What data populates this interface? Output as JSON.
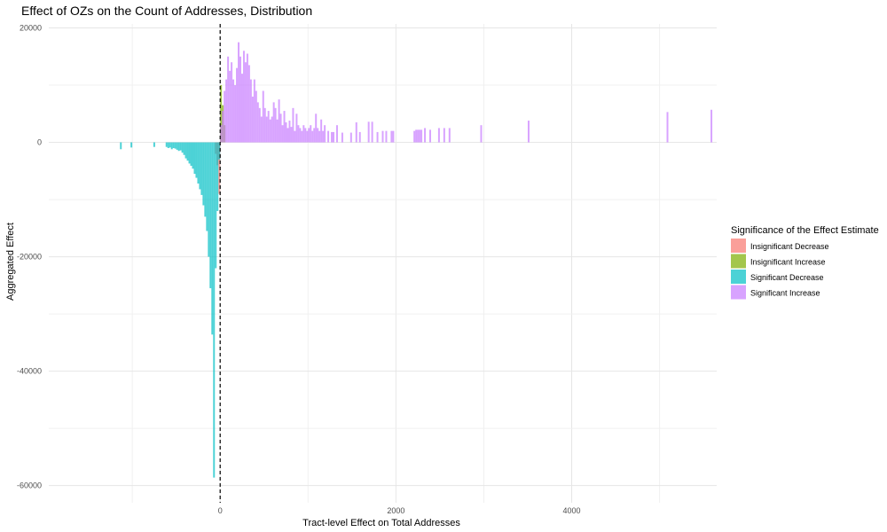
{
  "chart_data": {
    "type": "bar",
    "title": "Effect of OZs on the Count of Addresses, Distribution",
    "xlabel": "Tract-level Effect on Total Addresses",
    "ylabel": "Aggregated Effect",
    "xlim": [
      -1950,
      5650
    ],
    "ylim": [
      -63000,
      20700
    ],
    "xticks": [
      {
        "value": 0,
        "label": "0"
      },
      {
        "value": 2000,
        "label": "2000"
      },
      {
        "value": 4000,
        "label": "4000"
      }
    ],
    "yticks": [
      {
        "value": 20000,
        "label": "20000"
      },
      {
        "value": 0,
        "label": "0"
      },
      {
        "value": -20000,
        "label": "-20000"
      },
      {
        "value": -40000,
        "label": "-40000"
      },
      {
        "value": -60000,
        "label": "-60000"
      }
    ],
    "bin_width": 20,
    "reference_line": {
      "x": 0,
      "style": "dashed"
    },
    "grid": true,
    "legend": {
      "title": "Significance of the Effect Estimate",
      "placement": "right"
    },
    "series": [
      {
        "name": "Insignificant Decrease",
        "color": "#F8766D",
        "bars": [
          {
            "x": -50,
            "y": -2000
          },
          {
            "x": -30,
            "y": -4000
          },
          {
            "x": -10,
            "y": -9000
          }
        ]
      },
      {
        "name": "Insignificant Increase",
        "color": "#7CAE00",
        "bars": [
          {
            "x": 10,
            "y": 10000
          },
          {
            "x": 30,
            "y": 6500
          },
          {
            "x": 50,
            "y": 3000
          }
        ]
      },
      {
        "name": "Significant Decrease",
        "color": "#00BFC4",
        "bars": [
          {
            "x": -1130,
            "y": -1200
          },
          {
            "x": -1010,
            "y": -900
          },
          {
            "x": -750,
            "y": -800
          },
          {
            "x": -610,
            "y": -800
          },
          {
            "x": -590,
            "y": -1000
          },
          {
            "x": -570,
            "y": -900
          },
          {
            "x": -550,
            "y": -1200
          },
          {
            "x": -530,
            "y": -1000
          },
          {
            "x": -510,
            "y": -1100
          },
          {
            "x": -490,
            "y": -1300
          },
          {
            "x": -470,
            "y": -1500
          },
          {
            "x": -450,
            "y": -1400
          },
          {
            "x": -430,
            "y": -1800
          },
          {
            "x": -410,
            "y": -2200
          },
          {
            "x": -390,
            "y": -2800
          },
          {
            "x": -370,
            "y": -3200
          },
          {
            "x": -350,
            "y": -3700
          },
          {
            "x": -330,
            "y": -4100
          },
          {
            "x": -310,
            "y": -4600
          },
          {
            "x": -290,
            "y": -5500
          },
          {
            "x": -270,
            "y": -6200
          },
          {
            "x": -250,
            "y": -7200
          },
          {
            "x": -230,
            "y": -8200
          },
          {
            "x": -210,
            "y": -9200
          },
          {
            "x": -190,
            "y": -11000
          },
          {
            "x": -170,
            "y": -13000
          },
          {
            "x": -150,
            "y": -15500
          },
          {
            "x": -130,
            "y": -20000
          },
          {
            "x": -110,
            "y": -25500
          },
          {
            "x": -90,
            "y": -33600
          },
          {
            "x": -70,
            "y": -58600
          },
          {
            "x": -50,
            "y": -22000
          },
          {
            "x": -30,
            "y": -12000
          },
          {
            "x": -10,
            "y": -3000
          }
        ]
      },
      {
        "name": "Significant Increase",
        "color": "#C77CFF",
        "bars": [
          {
            "x": 10,
            "y": 3000
          },
          {
            "x": 30,
            "y": 5500
          },
          {
            "x": 50,
            "y": 9000
          },
          {
            "x": 70,
            "y": 11000
          },
          {
            "x": 90,
            "y": 15000
          },
          {
            "x": 110,
            "y": 12500
          },
          {
            "x": 130,
            "y": 14000
          },
          {
            "x": 150,
            "y": 11000
          },
          {
            "x": 170,
            "y": 10000
          },
          {
            "x": 190,
            "y": 13000
          },
          {
            "x": 210,
            "y": 17500
          },
          {
            "x": 230,
            "y": 15000
          },
          {
            "x": 250,
            "y": 12000
          },
          {
            "x": 270,
            "y": 16000
          },
          {
            "x": 290,
            "y": 14000
          },
          {
            "x": 310,
            "y": 15500
          },
          {
            "x": 330,
            "y": 13500
          },
          {
            "x": 350,
            "y": 11000
          },
          {
            "x": 370,
            "y": 8000
          },
          {
            "x": 390,
            "y": 11000
          },
          {
            "x": 410,
            "y": 9000
          },
          {
            "x": 430,
            "y": 7000
          },
          {
            "x": 450,
            "y": 6000
          },
          {
            "x": 470,
            "y": 4500
          },
          {
            "x": 490,
            "y": 9000
          },
          {
            "x": 510,
            "y": 6000
          },
          {
            "x": 530,
            "y": 4500
          },
          {
            "x": 550,
            "y": 5500
          },
          {
            "x": 570,
            "y": 4000
          },
          {
            "x": 590,
            "y": 4500
          },
          {
            "x": 610,
            "y": 7000
          },
          {
            "x": 630,
            "y": 6000
          },
          {
            "x": 650,
            "y": 4000
          },
          {
            "x": 670,
            "y": 7500
          },
          {
            "x": 690,
            "y": 5000
          },
          {
            "x": 710,
            "y": 3000
          },
          {
            "x": 730,
            "y": 5500
          },
          {
            "x": 750,
            "y": 3500
          },
          {
            "x": 770,
            "y": 2500
          },
          {
            "x": 790,
            "y": 3800
          },
          {
            "x": 810,
            "y": 2700
          },
          {
            "x": 830,
            "y": 6000
          },
          {
            "x": 850,
            "y": 2000
          },
          {
            "x": 870,
            "y": 5000
          },
          {
            "x": 890,
            "y": 3000
          },
          {
            "x": 910,
            "y": 2500
          },
          {
            "x": 930,
            "y": 2000
          },
          {
            "x": 950,
            "y": 3000
          },
          {
            "x": 970,
            "y": 2500
          },
          {
            "x": 990,
            "y": 2000
          },
          {
            "x": 1010,
            "y": 2500
          },
          {
            "x": 1030,
            "y": 3000
          },
          {
            "x": 1050,
            "y": 2000
          },
          {
            "x": 1070,
            "y": 2500
          },
          {
            "x": 1090,
            "y": 5000
          },
          {
            "x": 1110,
            "y": 2500
          },
          {
            "x": 1130,
            "y": 2000
          },
          {
            "x": 1150,
            "y": 4000
          },
          {
            "x": 1170,
            "y": 2000
          },
          {
            "x": 1190,
            "y": 3000
          },
          {
            "x": 1230,
            "y": 2000
          },
          {
            "x": 1270,
            "y": 1800
          },
          {
            "x": 1290,
            "y": 1800
          },
          {
            "x": 1330,
            "y": 3000
          },
          {
            "x": 1390,
            "y": 1700
          },
          {
            "x": 1490,
            "y": 1700
          },
          {
            "x": 1550,
            "y": 3500
          },
          {
            "x": 1590,
            "y": 1800
          },
          {
            "x": 1690,
            "y": 3600
          },
          {
            "x": 1730,
            "y": 3600
          },
          {
            "x": 1790,
            "y": 1800
          },
          {
            "x": 1850,
            "y": 2000
          },
          {
            "x": 1890,
            "y": 2000
          },
          {
            "x": 1950,
            "y": 2000
          },
          {
            "x": 1970,
            "y": 2000
          },
          {
            "x": 2210,
            "y": 2000
          },
          {
            "x": 2230,
            "y": 2200
          },
          {
            "x": 2250,
            "y": 2200
          },
          {
            "x": 2270,
            "y": 2200
          },
          {
            "x": 2290,
            "y": 2200
          },
          {
            "x": 2330,
            "y": 2500
          },
          {
            "x": 2390,
            "y": 2200
          },
          {
            "x": 2490,
            "y": 2500
          },
          {
            "x": 2550,
            "y": 2500
          },
          {
            "x": 2610,
            "y": 2500
          },
          {
            "x": 2970,
            "y": 3000
          },
          {
            "x": 3510,
            "y": 3800
          },
          {
            "x": 5090,
            "y": 5300
          },
          {
            "x": 5590,
            "y": 5700
          }
        ]
      }
    ]
  }
}
